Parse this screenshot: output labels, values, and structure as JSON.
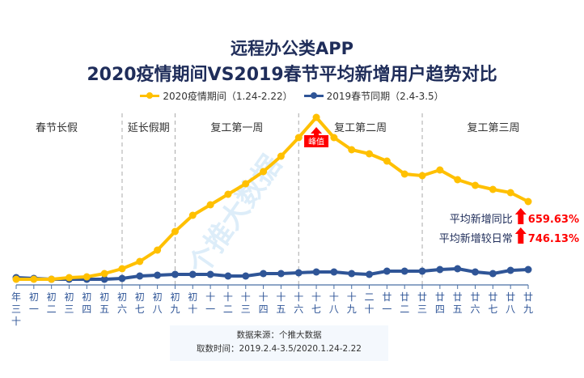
{
  "chart_data": {
    "type": "line",
    "title": "远程办公类APP",
    "subtitle": "2020疫情期间VS2019春节平均新增用户趋势对比",
    "categories": [
      "年三十",
      "初一",
      "初二",
      "初三",
      "初四",
      "初五",
      "初六",
      "初七",
      "初八",
      "初九",
      "初十",
      "十一",
      "十二",
      "十三",
      "十四",
      "十五",
      "十六",
      "十七",
      "十八",
      "十九",
      "二十",
      "廿一",
      "廿二",
      "廿三",
      "廿四",
      "廿五",
      "廿六",
      "廿七",
      "廿八",
      "廿九"
    ],
    "series": [
      {
        "name": "2020疫情期间（1.24-2.22）",
        "color": "#FFC000",
        "values": [
          0,
          0,
          0,
          1,
          1.5,
          3.5,
          6.5,
          11,
          18,
          29.5,
          39.5,
          46,
          52.5,
          59,
          66.5,
          76,
          87.5,
          100,
          87.5,
          80,
          77.5,
          73,
          65,
          64,
          67.5,
          61.5,
          58,
          55.5,
          53.5,
          48
        ]
      },
      {
        "name": "2019春节同期（2.4-3.5）",
        "color": "#2F5597",
        "values": [
          1,
          0.5,
          0,
          0,
          0,
          0,
          0.5,
          2,
          2.5,
          3,
          3,
          3,
          2,
          2,
          3.5,
          3.5,
          4,
          4.5,
          4.5,
          3.5,
          3,
          5,
          5,
          5,
          6,
          6.5,
          4.5,
          3.5,
          5.5,
          6
        ]
      }
    ],
    "ylim": [
      0,
      100
    ],
    "y_axis_shown": false,
    "grid": false,
    "legend": "top-center",
    "periods": [
      {
        "label": "春节长假",
        "start": 0,
        "end": 6
      },
      {
        "label": "延长假期",
        "start": 6,
        "end": 9
      },
      {
        "label": "复工第一周",
        "start": 9,
        "end": 16
      },
      {
        "label": "复工第二周",
        "start": 16,
        "end": 23
      },
      {
        "label": "复工第三周",
        "start": 23,
        "end": 29
      }
    ],
    "dividers_at": [
      6,
      9,
      16,
      23
    ],
    "peak_annotation": {
      "label": "峰值",
      "index": 17,
      "color": "#FF0000"
    },
    "annotations": [
      {
        "label": "平均新增同比",
        "value": "659.63%"
      },
      {
        "label": "平均新增较日常",
        "value": "746.13%"
      }
    ],
    "annotation_color": "#FF0000"
  },
  "watermark": "个推大数据",
  "footer": {
    "source": "数据来源：个推大数据",
    "period": "取数时间：2019.2.4-3.5/2020.1.24-2.22"
  }
}
